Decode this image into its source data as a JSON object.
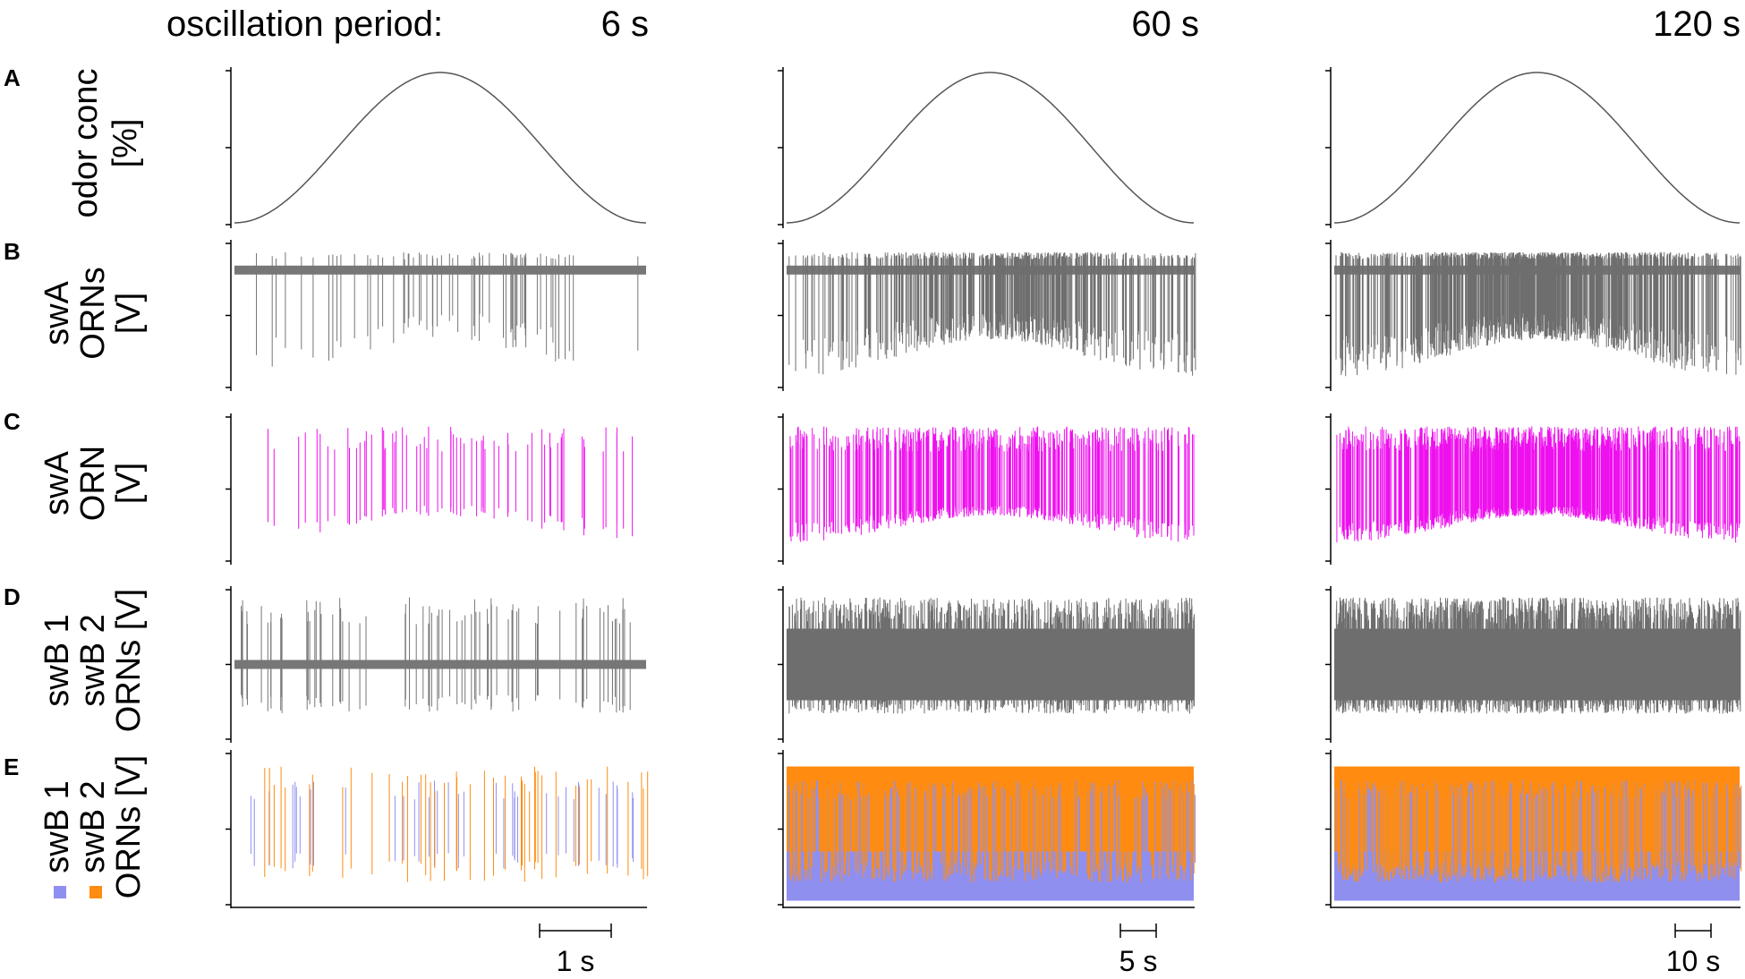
{
  "header": {
    "period_label": "oscillation period:",
    "periods": [
      "6 s",
      "60 s",
      "120 s"
    ]
  },
  "rows": [
    {
      "letter": "A",
      "ylabel_lines": [
        "odor conc",
        "[%]"
      ],
      "kind": "stimulus"
    },
    {
      "letter": "B",
      "ylabel_lines": [
        "swA",
        "ORNs",
        "[V]"
      ],
      "kind": "recording"
    },
    {
      "letter": "C",
      "ylabel_lines": [
        "swA",
        "ORN",
        "[V]"
      ],
      "kind": "single_unit"
    },
    {
      "letter": "D",
      "ylabel_lines": [
        "swB 1",
        "swB 2",
        "ORNs [V]"
      ],
      "kind": "recording"
    },
    {
      "letter": "E",
      "ylabel_lines": [
        "swB 1",
        "swB 2",
        "ORNs [V]"
      ],
      "kind": "two_units"
    }
  ],
  "scale_bars": [
    "1 s",
    "5 s",
    "10 s"
  ],
  "colors": {
    "stimulus": "#555555",
    "recording": "#777777",
    "dense_recording": "#6e6e6e",
    "swA_unit": "#ee10ee",
    "swB1_unit": "#8f8ff0",
    "swB2_unit": "#ff8c10",
    "axis": "#000000"
  },
  "chart_data": [
    {
      "type": "line",
      "title": "6 s",
      "panels": [
        "A: odor concentration (raised-cosine stimulus, one cycle)",
        "B: swA ORNs extracellular recording",
        "C: sorted swA ORN spikes",
        "D: swB 1 / swB 2 ORNs recording",
        "E: sorted swB 1 and swB 2 spikes"
      ],
      "xlabel": "",
      "ylabel": "",
      "scale_bar": "1 s",
      "spike_density": "sparse"
    },
    {
      "type": "line",
      "title": "60 s",
      "panels": [
        "A: odor concentration (raised-cosine stimulus, one cycle)",
        "B: swA ORNs extracellular recording",
        "C: sorted swA ORN spikes",
        "D: swB 1 / swB 2 ORNs recording",
        "E: sorted swB 1 and swB 2 spikes"
      ],
      "xlabel": "",
      "ylabel": "",
      "scale_bar": "5 s",
      "spike_density": "dense"
    },
    {
      "type": "line",
      "title": "120 s",
      "panels": [
        "A: odor concentration (raised-cosine stimulus, one cycle)",
        "B: swA ORNs extracellular recording",
        "C: sorted swA ORN spikes",
        "D: swB 1 / swB 2 ORNs recording",
        "E: sorted swB 1 and swB 2 spikes"
      ],
      "xlabel": "",
      "ylabel": "",
      "scale_bar": "10 s",
      "spike_density": "very dense"
    }
  ]
}
